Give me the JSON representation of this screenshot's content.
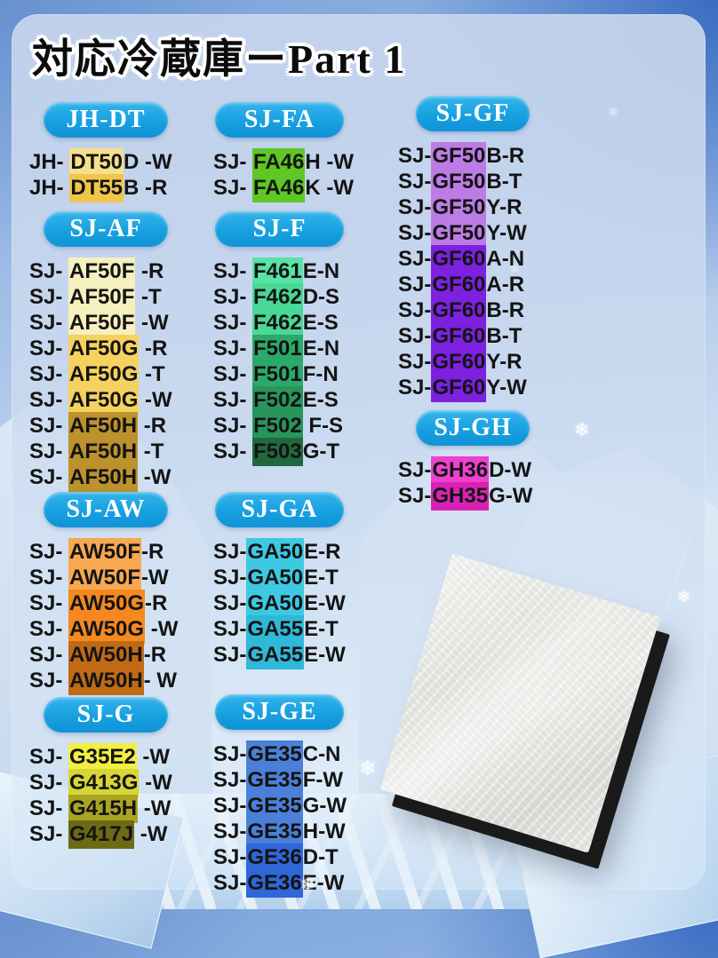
{
  "title": "対応冷蔵庫ーPart 1",
  "accent_color": "#17a0e0",
  "icons": {
    "snowflake": "❄"
  },
  "product": {
    "name": "refrigerator filter pad"
  },
  "columns": [
    {
      "sections": [
        {
          "header": "JH-DT",
          "rows": [
            {
              "pre": "JH- ",
              "hl": "DT50",
              "suf": "D -W",
              "color": "#f6df8c"
            },
            {
              "pre": "JH- ",
              "hl": "DT55",
              "suf": "B -R",
              "color": "#f0c64a"
            }
          ]
        },
        {
          "header": "SJ-AF",
          "rows": [
            {
              "pre": "SJ- ",
              "hl": "AF50F",
              "suf": " -R",
              "color": "#f6efbe"
            },
            {
              "pre": "SJ- ",
              "hl": "AF50F",
              "suf": " -T",
              "color": "#f6efbe"
            },
            {
              "pre": "SJ- ",
              "hl": "AF50F",
              "suf": " -W",
              "color": "#f6efbe"
            },
            {
              "pre": "SJ- ",
              "hl": "AF50G",
              "suf": " -R",
              "color": "#f5d25e"
            },
            {
              "pre": "SJ- ",
              "hl": "AF50G",
              "suf": " -T",
              "color": "#f5d25e"
            },
            {
              "pre": "SJ- ",
              "hl": "AF50G",
              "suf": " -W",
              "color": "#f5d25e"
            },
            {
              "pre": "SJ- ",
              "hl": "AF50H",
              "suf": " -R",
              "color": "#bb922c"
            },
            {
              "pre": "SJ- ",
              "hl": "AF50H",
              "suf": " -T",
              "color": "#bb922c"
            },
            {
              "pre": "SJ- ",
              "hl": "AF50H",
              "suf": " -W",
              "color": "#bb922c"
            }
          ]
        },
        {
          "header": "SJ-AW",
          "rows": [
            {
              "pre": "SJ- ",
              "hl": "AW50F",
              "suf": "-R",
              "color": "#f8a851"
            },
            {
              "pre": "SJ- ",
              "hl": "AW50F",
              "suf": "-W",
              "color": "#f8a851"
            },
            {
              "pre": "SJ- ",
              "hl": "AW50G",
              "suf": "-R",
              "color": "#f5891f"
            },
            {
              "pre": "SJ- ",
              "hl": "AW50G",
              "suf": " -W",
              "color": "#f5891f"
            },
            {
              "pre": "SJ- ",
              "hl": "AW50H",
              "suf": "-R",
              "color": "#c16a15"
            },
            {
              "pre": "SJ- ",
              "hl": "AW50H",
              "suf": "- W",
              "color": "#c16a15"
            }
          ]
        },
        {
          "header": "SJ-G",
          "rows": [
            {
              "pre": "SJ- ",
              "hl": "G35E2",
              "suf": " -W",
              "color": "#f1ef41"
            },
            {
              "pre": "SJ- ",
              "hl": "G413G",
              "suf": " -W",
              "color": "#d8d634"
            },
            {
              "pre": "SJ- ",
              "hl": "G415H",
              "suf": " -W",
              "color": "#aaa423"
            },
            {
              "pre": "SJ- ",
              "hl": "G417J",
              "suf": " -W",
              "color": "#6d6a16"
            }
          ]
        }
      ]
    },
    {
      "sections": [
        {
          "header": "SJ-FA",
          "rows": [
            {
              "pre": "SJ- ",
              "hl": "FA46",
              "suf": "H -W",
              "color": "#5ec723"
            },
            {
              "pre": "SJ- ",
              "hl": "FA46",
              "suf": "K -W",
              "color": "#5ec723"
            }
          ]
        },
        {
          "header": "SJ-F",
          "rows": [
            {
              "pre": "SJ- ",
              "hl": "F461",
              "suf": "E-N",
              "color": "#55e3a6"
            },
            {
              "pre": "SJ- ",
              "hl": "F462",
              "suf": "D-S",
              "color": "#49d896"
            },
            {
              "pre": "SJ- ",
              "hl": "F462",
              "suf": "E-S",
              "color": "#49d896"
            },
            {
              "pre": "SJ- ",
              "hl": "F501",
              "suf": "E-N",
              "color": "#2ba96a"
            },
            {
              "pre": "SJ- ",
              "hl": "F501",
              "suf": "F-N",
              "color": "#2ba96a"
            },
            {
              "pre": "SJ- ",
              "hl": "F502",
              "suf": "E-S",
              "color": "#28955c"
            },
            {
              "pre": "SJ- ",
              "hl": "F502",
              "suf": " F-S",
              "color": "#28955c"
            },
            {
              "pre": "SJ- ",
              "hl": "F503",
              "suf": "G-T",
              "color": "#20693d"
            }
          ]
        },
        {
          "header": "SJ-GA",
          "rows": [
            {
              "pre": "SJ-",
              "hl": "GA50",
              "suf": "E-R",
              "color": "#3ec9e3"
            },
            {
              "pre": "SJ-",
              "hl": "GA50",
              "suf": "E-T",
              "color": "#3ec9e3"
            },
            {
              "pre": "SJ-",
              "hl": "GA50",
              "suf": "E-W",
              "color": "#3ec9e3"
            },
            {
              "pre": "SJ-",
              "hl": "GA55",
              "suf": "E-T",
              "color": "#2fb9d8"
            },
            {
              "pre": "SJ-",
              "hl": "GA55",
              "suf": "E-W",
              "color": "#2fb9d8"
            }
          ]
        },
        {
          "header": "SJ-GE",
          "rows": [
            {
              "pre": "SJ-",
              "hl": "GE35",
              "suf": "C-N",
              "color": "#4b80da"
            },
            {
              "pre": "SJ-",
              "hl": "GE35",
              "suf": "F-W",
              "color": "#4b80da"
            },
            {
              "pre": "SJ-",
              "hl": "GE35",
              "suf": "G-W",
              "color": "#4b80da"
            },
            {
              "pre": "SJ-",
              "hl": "GE35",
              "suf": "H-W",
              "color": "#4b80da"
            },
            {
              "pre": "SJ-",
              "hl": "GE36",
              "suf": "D-T",
              "color": "#2f66d8"
            },
            {
              "pre": "SJ-",
              "hl": "GE36",
              "suf": "E-W",
              "color": "#2f66d8"
            }
          ]
        }
      ]
    },
    {
      "sections": [
        {
          "header": "SJ-GF",
          "rows": [
            {
              "pre": "SJ-",
              "hl": "GF50",
              "suf": "B-R",
              "color": "#bd7ce5"
            },
            {
              "pre": "SJ-",
              "hl": "GF50",
              "suf": "B-T",
              "color": "#bd7ce5"
            },
            {
              "pre": "SJ-",
              "hl": "GF50",
              "suf": "Y-R",
              "color": "#bd7ce5"
            },
            {
              "pre": "SJ-",
              "hl": "GF50",
              "suf": "Y-W",
              "color": "#bd7ce5"
            },
            {
              "pre": "SJ-",
              "hl": "GF60",
              "suf": "A-N",
              "color": "#7d20e0"
            },
            {
              "pre": "SJ-",
              "hl": "GF60",
              "suf": "A-R",
              "color": "#7d20e0"
            },
            {
              "pre": "SJ-",
              "hl": "GF60",
              "suf": "B-R",
              "color": "#7d20e0"
            },
            {
              "pre": "SJ-",
              "hl": "GF60",
              "suf": "B-T",
              "color": "#7d20e0"
            },
            {
              "pre": "SJ-",
              "hl": "GF60",
              "suf": "Y-R",
              "color": "#7d20e0"
            },
            {
              "pre": "SJ-",
              "hl": "GF60",
              "suf": "Y-W",
              "color": "#7d20e0"
            }
          ]
        },
        {
          "header": "SJ-GH",
          "rows": [
            {
              "pre": "SJ-",
              "hl": "GH36",
              "suf": "D-W",
              "color": "#ef40d1"
            },
            {
              "pre": "SJ-",
              "hl": "GH35",
              "suf": "G-W",
              "color": "#d922b5"
            }
          ]
        }
      ]
    }
  ]
}
